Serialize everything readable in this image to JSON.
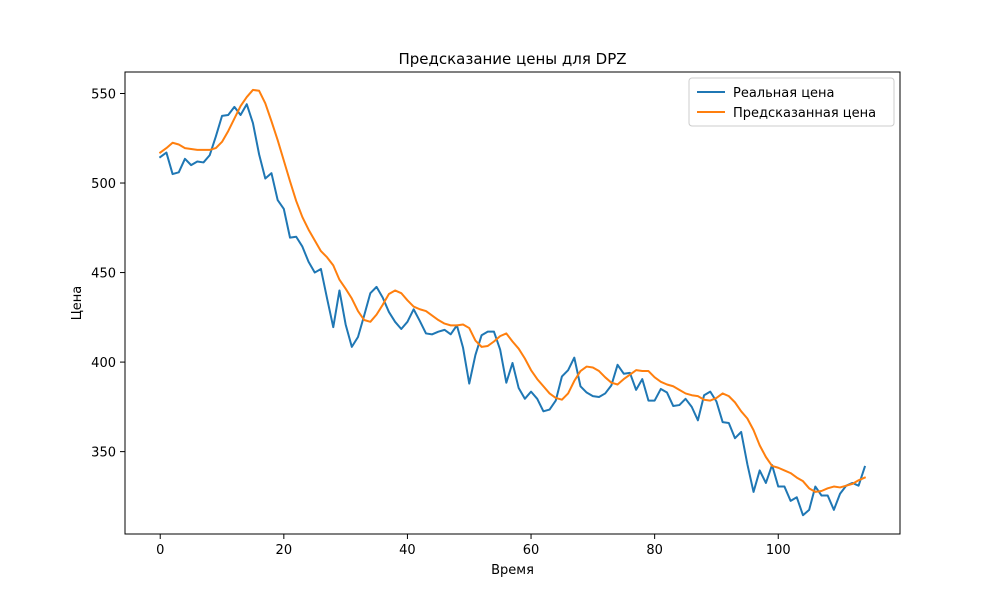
{
  "chart_data": {
    "type": "line",
    "title": "Предсказание цены для DPZ",
    "xlabel": "Время",
    "ylabel": "Цена",
    "xlim": [
      -5.7,
      119.7
    ],
    "ylim": [
      304,
      562
    ],
    "xticks": [
      0,
      20,
      40,
      60,
      80,
      100
    ],
    "yticks": [
      350,
      400,
      450,
      500,
      550
    ],
    "grid": false,
    "legend_position": "top-right",
    "series": [
      {
        "name": "Реальная цена",
        "color": "#1f77b4",
        "values": [
          514.5,
          517.0,
          505.0,
          506.0,
          513.5,
          510.0,
          512.0,
          511.5,
          515.5,
          526.0,
          537.5,
          538.0,
          542.5,
          538.0,
          544.0,
          533.5,
          516.0,
          502.5,
          505.5,
          490.5,
          485.5,
          469.5,
          470.0,
          464.5,
          456.0,
          450.0,
          452.0,
          435.5,
          419.5,
          440.0,
          421.0,
          408.5,
          414.0,
          426.0,
          438.5,
          442.0,
          436.0,
          428.0,
          422.5,
          418.5,
          422.5,
          429.5,
          423.0,
          416.0,
          415.5,
          417.0,
          418.0,
          415.5,
          420.5,
          408.0,
          388.0,
          404.0,
          415.0,
          417.0,
          417.0,
          407.0,
          388.5,
          399.5,
          385.5,
          379.5,
          383.5,
          379.5,
          372.5,
          373.5,
          378.5,
          392.0,
          395.5,
          402.5,
          386.5,
          383.0,
          381.0,
          380.5,
          382.5,
          387.0,
          398.5,
          393.5,
          394.0,
          384.5,
          390.5,
          378.5,
          378.5,
          385.0,
          383.0,
          375.5,
          376.0,
          379.5,
          375.0,
          367.5,
          381.5,
          383.5,
          378.0,
          366.5,
          366.0,
          357.5,
          361.0,
          343.0,
          327.5,
          339.5,
          332.5,
          342.5,
          330.5,
          330.5,
          322.5,
          324.5,
          314.5,
          317.5,
          330.5,
          325.5,
          325.5,
          317.5,
          326.5,
          331.0,
          332.5,
          331.0,
          341.5
        ]
      },
      {
        "name": "Предсказанная цена",
        "color": "#ff7f0e",
        "values": [
          517.0,
          519.5,
          522.5,
          521.5,
          519.5,
          519.0,
          518.5,
          518.5,
          518.5,
          519.5,
          523.0,
          529.0,
          536.0,
          543.0,
          548.0,
          552.0,
          551.5,
          544.5,
          534.5,
          524.0,
          512.5,
          501.0,
          490.0,
          481.0,
          474.0,
          468.0,
          462.0,
          458.5,
          454.0,
          446.0,
          441.0,
          435.5,
          428.5,
          423.5,
          422.5,
          426.5,
          432.0,
          438.0,
          440.0,
          438.5,
          434.5,
          431.0,
          429.5,
          428.5,
          426.0,
          423.5,
          421.5,
          420.5,
          420.5,
          421.0,
          419.0,
          412.0,
          408.5,
          409.0,
          411.5,
          414.5,
          416.0,
          411.5,
          407.5,
          402.0,
          395.5,
          390.5,
          386.5,
          382.5,
          380.0,
          379.0,
          382.5,
          389.5,
          395.0,
          397.5,
          397.0,
          395.0,
          391.5,
          388.5,
          387.5,
          390.5,
          393.0,
          395.5,
          395.0,
          395.0,
          391.5,
          389.0,
          387.5,
          386.5,
          384.5,
          382.5,
          381.5,
          381.0,
          379.0,
          378.5,
          380.0,
          382.5,
          381.0,
          377.5,
          372.5,
          368.5,
          362.0,
          353.5,
          347.0,
          342.0,
          341.0,
          339.5,
          338.0,
          335.5,
          333.5,
          329.5,
          327.5,
          328.0,
          329.5,
          330.5,
          330.0,
          331.0,
          332.0,
          334.0,
          335.5
        ]
      }
    ]
  }
}
